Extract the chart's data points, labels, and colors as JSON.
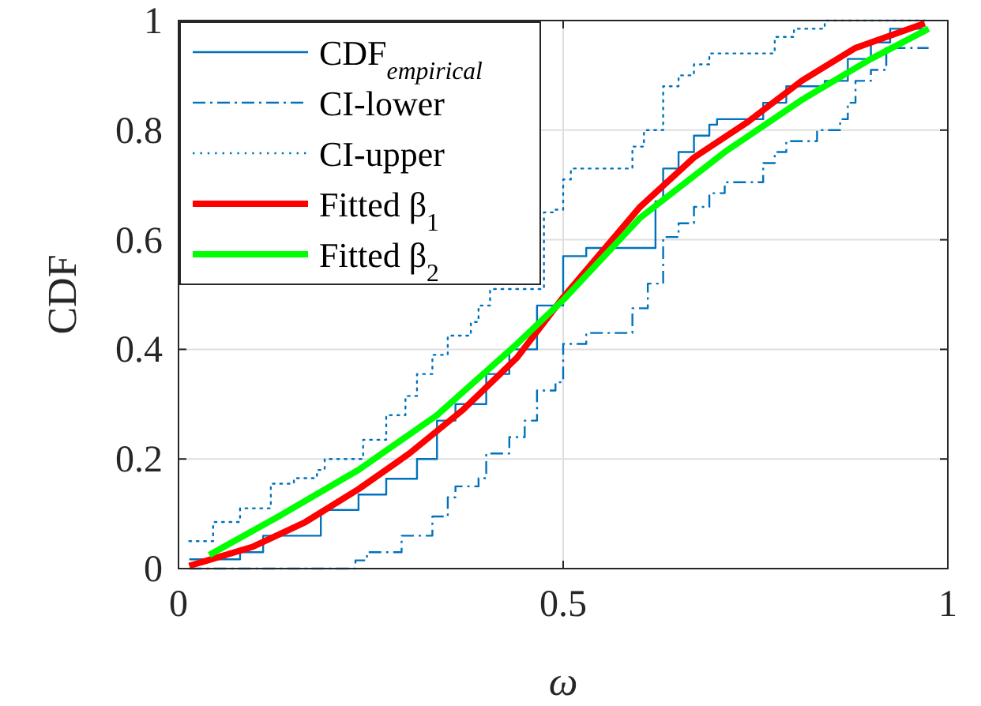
{
  "chart_data": {
    "type": "line",
    "xlabel": "ω",
    "ylabel": "CDF",
    "xlim": [
      0,
      1
    ],
    "ylim": [
      0,
      1
    ],
    "xticks": [
      0,
      0.5,
      1
    ],
    "yticks": [
      0,
      0.2,
      0.4,
      0.6,
      0.8,
      1
    ],
    "grid": true,
    "legend": "top left",
    "series": [
      {
        "name": "CDF$_{empirical}$",
        "type": "step",
        "color": "#0072bd",
        "line_style": "solid",
        "x": [
          0.014,
          0.08,
          0.11,
          0.185,
          0.234,
          0.27,
          0.31,
          0.336,
          0.36,
          0.4,
          0.43,
          0.466,
          0.5,
          0.53,
          0.62,
          0.63,
          0.65,
          0.67,
          0.69,
          0.7,
          0.76,
          0.79,
          0.84,
          0.87,
          0.9,
          0.925,
          0.97
        ],
        "values": [
          0.017,
          0.03,
          0.06,
          0.107,
          0.135,
          0.164,
          0.2,
          0.27,
          0.3,
          0.355,
          0.4,
          0.48,
          0.57,
          0.585,
          0.67,
          0.73,
          0.76,
          0.79,
          0.81,
          0.82,
          0.85,
          0.88,
          0.89,
          0.93,
          0.96,
          0.985,
          0.985
        ]
      },
      {
        "name": "CI-lower",
        "type": "step",
        "color": "#0072bd",
        "line_style": "dashdot",
        "x": [
          0.014,
          0.23,
          0.245,
          0.29,
          0.33,
          0.35,
          0.36,
          0.39,
          0.4,
          0.43,
          0.45,
          0.466,
          0.49,
          0.5,
          0.53,
          0.59,
          0.61,
          0.63,
          0.65,
          0.67,
          0.69,
          0.71,
          0.76,
          0.775,
          0.79,
          0.83,
          0.86,
          0.87,
          0.88,
          0.9,
          0.92,
          0.975
        ],
        "values": [
          0,
          0.015,
          0.03,
          0.06,
          0.095,
          0.13,
          0.15,
          0.165,
          0.21,
          0.24,
          0.27,
          0.325,
          0.34,
          0.41,
          0.43,
          0.475,
          0.52,
          0.605,
          0.63,
          0.66,
          0.685,
          0.705,
          0.74,
          0.76,
          0.78,
          0.8,
          0.82,
          0.85,
          0.89,
          0.91,
          0.95,
          0.95
        ]
      },
      {
        "name": "CI-upper",
        "type": "step",
        "color": "#0072bd",
        "line_style": "dotted",
        "x": [
          0.014,
          0.045,
          0.08,
          0.12,
          0.15,
          0.18,
          0.19,
          0.24,
          0.27,
          0.295,
          0.31,
          0.33,
          0.35,
          0.38,
          0.39,
          0.405,
          0.475,
          0.49,
          0.5,
          0.51,
          0.59,
          0.605,
          0.63,
          0.65,
          0.67,
          0.69,
          0.775,
          0.8,
          0.84,
          0.97
        ],
        "values": [
          0.05,
          0.085,
          0.11,
          0.155,
          0.165,
          0.18,
          0.2,
          0.235,
          0.28,
          0.315,
          0.355,
          0.39,
          0.425,
          0.45,
          0.48,
          0.51,
          0.65,
          0.655,
          0.71,
          0.73,
          0.77,
          0.8,
          0.88,
          0.9,
          0.92,
          0.94,
          0.97,
          0.985,
          1,
          1
        ]
      },
      {
        "name": "Fitted β$_{1}$",
        "type": "line",
        "color": "#ff0000",
        "line_style": "solid",
        "x": [
          0.014,
          0.097,
          0.165,
          0.234,
          0.3,
          0.37,
          0.44,
          0.5,
          0.6,
          0.67,
          0.74,
          0.81,
          0.88,
          0.97
        ],
        "values": [
          0.005,
          0.04,
          0.085,
          0.145,
          0.21,
          0.29,
          0.385,
          0.495,
          0.66,
          0.75,
          0.815,
          0.89,
          0.95,
          0.995
        ]
      },
      {
        "name": "Fitted β$_{2}$",
        "type": "line",
        "color": "#00ff00",
        "line_style": "solid",
        "x": [
          0.04,
          0.13,
          0.234,
          0.336,
          0.44,
          0.5,
          0.6,
          0.71,
          0.81,
          0.9,
          0.975
        ],
        "values": [
          0.025,
          0.095,
          0.18,
          0.28,
          0.41,
          0.49,
          0.64,
          0.76,
          0.855,
          0.93,
          0.985
        ]
      }
    ]
  }
}
